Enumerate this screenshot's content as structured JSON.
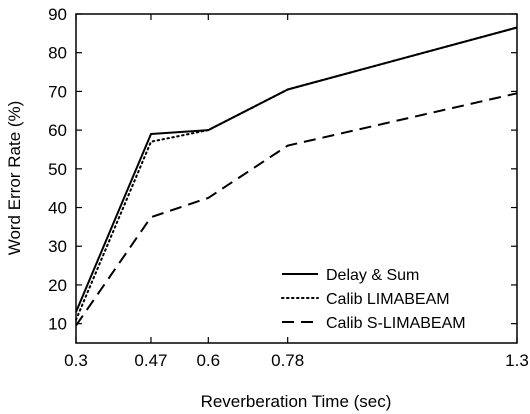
{
  "chart_data": {
    "type": "line",
    "xlabel": "Reverberation Time (sec)",
    "ylabel": "Word Error Rate (%)",
    "xlim": [
      0.3,
      1.3
    ],
    "ylim": [
      5,
      90
    ],
    "xticks": [
      0.3,
      0.47,
      0.6,
      0.78,
      1.3
    ],
    "xtick_labels": [
      "0.3",
      "0.47",
      "0.6",
      "0.78",
      "1.3"
    ],
    "yticks": [
      10,
      20,
      30,
      40,
      50,
      60,
      70,
      80,
      90
    ],
    "ytick_labels": [
      "10",
      "20",
      "30",
      "40",
      "50",
      "60",
      "70",
      "80",
      "90"
    ],
    "legend_position": "bottom-right",
    "series": [
      {
        "name": "Delay & Sum",
        "style": "solid",
        "color": "#000000",
        "x": [
          0.3,
          0.47,
          0.6,
          0.78,
          1.3
        ],
        "y": [
          13,
          59,
          60,
          70.5,
          86.5
        ]
      },
      {
        "name": "Calib LIMABEAM",
        "style": "dotted",
        "color": "#000000",
        "x": [
          0.3,
          0.47,
          0.6,
          0.78,
          1.3
        ],
        "y": [
          11,
          57,
          60,
          70.5,
          86.5
        ]
      },
      {
        "name": "Calib S-LIMABEAM",
        "style": "dashed",
        "color": "#000000",
        "x": [
          0.3,
          0.47,
          0.6,
          0.78,
          1.3
        ],
        "y": [
          9.5,
          37.5,
          42.5,
          56,
          69.5
        ]
      }
    ]
  }
}
